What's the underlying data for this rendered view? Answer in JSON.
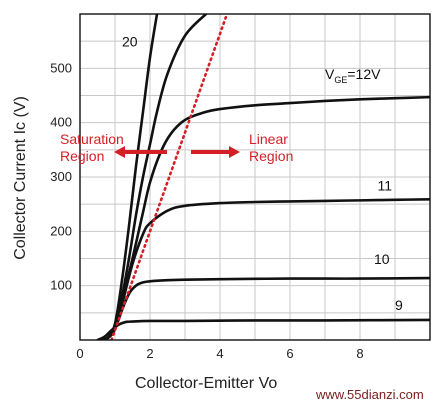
{
  "chart_data": {
    "type": "line",
    "title": "",
    "xlabel": "Collector-Emitter Voltage",
    "xlabel_visible": "Collector-Emitter Vo",
    "ylabel": "Collector Current Ic (V)",
    "xlim": [
      0,
      10
    ],
    "ylim": [
      0,
      600
    ],
    "x_ticks": [
      "0",
      "2",
      "4",
      "6",
      "8"
    ],
    "x_tick_values": [
      0,
      2,
      4,
      6,
      8
    ],
    "y_ticks": [
      "100",
      "200",
      "300",
      "400",
      "500"
    ],
    "y_tick_values": [
      100,
      200,
      300,
      400,
      500
    ],
    "grid": true,
    "series": [
      {
        "name": "20",
        "color": "#111111",
        "x": [
          0.6,
          0.8,
          1.0,
          1.2,
          1.4,
          1.6,
          1.8,
          2.0,
          2.2
        ],
        "y": [
          0,
          5,
          30,
          110,
          210,
          320,
          420,
          520,
          600
        ]
      },
      {
        "name": "",
        "x": [
          0.6,
          0.8,
          1.0,
          1.2,
          1.4,
          1.6,
          1.8,
          2.0,
          2.2,
          2.5,
          3.0,
          3.6
        ],
        "y": [
          0,
          4,
          25,
          80,
          150,
          230,
          300,
          360,
          420,
          490,
          560,
          600
        ]
      },
      {
        "name": "VGE=12V",
        "color": "#111111",
        "x": [
          0.6,
          0.8,
          1.0,
          1.2,
          1.5,
          1.8,
          2.0,
          2.3,
          2.6,
          3.0,
          3.5,
          4.0,
          5.0,
          6.0,
          7.0,
          8.0,
          9.0,
          10.0
        ],
        "y": [
          0,
          4,
          22,
          70,
          150,
          235,
          290,
          345,
          380,
          405,
          418,
          425,
          432,
          436,
          440,
          443,
          445,
          447
        ]
      },
      {
        "name": "11",
        "color": "#111111",
        "x": [
          0.6,
          0.8,
          1.0,
          1.2,
          1.5,
          1.8,
          2.0,
          2.5,
          3.0,
          4.0,
          5.0,
          6.0,
          7.0,
          8.0,
          9.0,
          10.0
        ],
        "y": [
          0,
          4,
          20,
          65,
          140,
          195,
          215,
          238,
          247,
          252,
          254,
          255,
          256,
          257,
          258,
          259
        ]
      },
      {
        "name": "10",
        "color": "#111111",
        "x": [
          0.6,
          0.8,
          1.0,
          1.2,
          1.4,
          1.6,
          1.8,
          2.0,
          2.5,
          3.0,
          4.0,
          6.0,
          8.0,
          10.0
        ],
        "y": [
          0,
          4,
          20,
          55,
          85,
          100,
          106,
          108,
          110,
          111,
          112,
          113,
          113,
          114
        ]
      },
      {
        "name": "9",
        "color": "#111111",
        "x": [
          0.5,
          0.7,
          0.9,
          1.1,
          1.3,
          1.5,
          2.0,
          3.0,
          5.0,
          7.0,
          10.0
        ],
        "y": [
          0,
          6,
          18,
          28,
          33,
          34,
          35,
          35,
          36,
          36,
          37
        ]
      }
    ],
    "boundary": {
      "name": "",
      "style": "dotted",
      "color": "#d41f26",
      "x": [
        0.9,
        4.2
      ],
      "y": [
        0,
        600
      ]
    },
    "annotations": [
      {
        "text": "20",
        "x": 1.2,
        "y": 540
      },
      {
        "text": "V",
        "sub": "GE",
        "tail": "=12V",
        "x": 7.0,
        "y": 480
      },
      {
        "text": "11",
        "x": 8.5,
        "y": 275
      },
      {
        "text": "10",
        "x": 8.4,
        "y": 140
      },
      {
        "text": "9",
        "x": 9.0,
        "y": 55
      }
    ],
    "regions": [
      {
        "lines": [
          "Saturation",
          "Region"
        ],
        "arrow": "left"
      },
      {
        "lines": [
          "Linear",
          "Region"
        ],
        "arrow": "right"
      }
    ]
  },
  "watermark": "www.55dianzi.com"
}
